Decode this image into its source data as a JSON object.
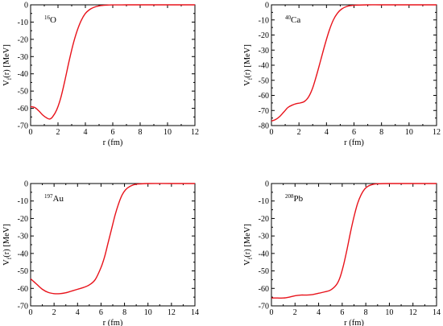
{
  "chart_data": [
    {
      "type": "line",
      "nucleus": {
        "mass": "16",
        "symbol": "O"
      },
      "xlabel": "r (fm)",
      "ylabel": {
        "main": "V",
        "sub": "f",
        "rest": "(r)  [MeV]"
      },
      "xlim": [
        0,
        12
      ],
      "ylim": [
        -70,
        0
      ],
      "xticks": [
        "0",
        "2",
        "4",
        "6",
        "8",
        "10",
        "12"
      ],
      "yticks": [
        "0",
        "-10",
        "-20",
        "-30",
        "-40",
        "-50",
        "-60",
        "-70"
      ],
      "grid": false,
      "series": [
        {
          "color": "#e8131b",
          "x": [
            0,
            0.3,
            0.6,
            0.9,
            1.2,
            1.4,
            1.6,
            1.9,
            2.2,
            2.5,
            2.8,
            3.1,
            3.4,
            3.7,
            4.0,
            4.3,
            4.6,
            5.0,
            5.5,
            6.0,
            7.0,
            8.0,
            10.0,
            12.0
          ],
          "y": [
            -59,
            -59.5,
            -61.5,
            -64,
            -65.7,
            -66.2,
            -65,
            -61,
            -54,
            -44,
            -33,
            -23,
            -15,
            -9,
            -5,
            -2.8,
            -1.5,
            -0.6,
            -0.2,
            -0.05,
            0,
            0,
            0,
            0
          ]
        }
      ]
    },
    {
      "type": "line",
      "nucleus": {
        "mass": "40",
        "symbol": "Ca"
      },
      "xlabel": "r (fm)",
      "ylabel": {
        "main": "V",
        "sub": "f",
        "rest": "(r)  [MeV]"
      },
      "xlim": [
        0,
        12
      ],
      "ylim": [
        -80,
        0
      ],
      "xticks": [
        "0",
        "2",
        "4",
        "6",
        "8",
        "10",
        "12"
      ],
      "yticks": [
        "0",
        "-10",
        "-20",
        "-30",
        "-40",
        "-50",
        "-60",
        "-70",
        "-80"
      ],
      "grid": false,
      "series": [
        {
          "color": "#e8131b",
          "x": [
            0,
            0.3,
            0.6,
            0.9,
            1.2,
            1.5,
            1.8,
            2.1,
            2.4,
            2.7,
            3.0,
            3.3,
            3.6,
            3.9,
            4.2,
            4.5,
            4.8,
            5.1,
            5.5,
            6.0,
            7.0,
            8.0,
            10.0,
            12.0
          ],
          "y": [
            -77,
            -76,
            -74,
            -71,
            -68,
            -66.5,
            -65.5,
            -65,
            -64,
            -61,
            -55,
            -46,
            -36,
            -26,
            -17,
            -10,
            -5.5,
            -2.8,
            -1,
            -0.3,
            0,
            0,
            0,
            0
          ]
        }
      ]
    },
    {
      "type": "line",
      "nucleus": {
        "mass": "197",
        "symbol": "Au"
      },
      "xlabel": "r (fm)",
      "ylabel": {
        "main": "V",
        "sub": "f",
        "rest": "(r)  [MeV]"
      },
      "xlim": [
        0,
        14
      ],
      "ylim": [
        -70,
        0
      ],
      "xticks": [
        "0",
        "2",
        "4",
        "6",
        "8",
        "10",
        "12",
        "14"
      ],
      "yticks": [
        "0",
        "-10",
        "-20",
        "-30",
        "-40",
        "-50",
        "-60",
        "-70"
      ],
      "grid": false,
      "series": [
        {
          "color": "#e8131b",
          "x": [
            0,
            0.5,
            1.0,
            1.5,
            2.0,
            2.5,
            3.0,
            3.5,
            4.0,
            4.5,
            5.0,
            5.5,
            6.0,
            6.3,
            6.6,
            6.9,
            7.2,
            7.5,
            7.8,
            8.1,
            8.5,
            9.0,
            10.0,
            12.0,
            14.0
          ],
          "y": [
            -54.5,
            -57.5,
            -60.5,
            -62.3,
            -63,
            -63,
            -62.5,
            -61.5,
            -60.5,
            -59.5,
            -58,
            -55,
            -48,
            -42,
            -34,
            -26,
            -18,
            -11.5,
            -6.5,
            -3.5,
            -1.5,
            -0.4,
            0,
            0,
            0
          ]
        }
      ]
    },
    {
      "type": "line",
      "nucleus": {
        "mass": "208",
        "symbol": "Pb"
      },
      "xlabel": "r (fm)",
      "ylabel": {
        "main": "V",
        "sub": "f",
        "rest": "(r)  [MeV]"
      },
      "xlim": [
        0,
        14
      ],
      "ylim": [
        -70,
        0
      ],
      "xticks": [
        "0",
        "2",
        "4",
        "6",
        "8",
        "10",
        "12",
        "14"
      ],
      "yticks": [
        "0",
        "-10",
        "-20",
        "-30",
        "-40",
        "-50",
        "-60",
        "-70"
      ],
      "grid": false,
      "series": [
        {
          "color": "#e8131b",
          "x": [
            0,
            0.5,
            1.0,
            1.5,
            2.0,
            2.5,
            3.0,
            3.5,
            4.0,
            4.5,
            5.0,
            5.5,
            5.8,
            6.1,
            6.4,
            6.7,
            7.0,
            7.3,
            7.6,
            7.9,
            8.2,
            8.6,
            9.0,
            10.0,
            12.0,
            14.0
          ],
          "y": [
            -65.5,
            -65.5,
            -65.5,
            -65,
            -64.2,
            -63.8,
            -63.8,
            -63.5,
            -62.8,
            -62,
            -61,
            -58,
            -54,
            -47,
            -38,
            -28,
            -19,
            -11.5,
            -6.5,
            -3.2,
            -1.5,
            -0.5,
            -0.15,
            0,
            0,
            0
          ]
        }
      ]
    }
  ]
}
